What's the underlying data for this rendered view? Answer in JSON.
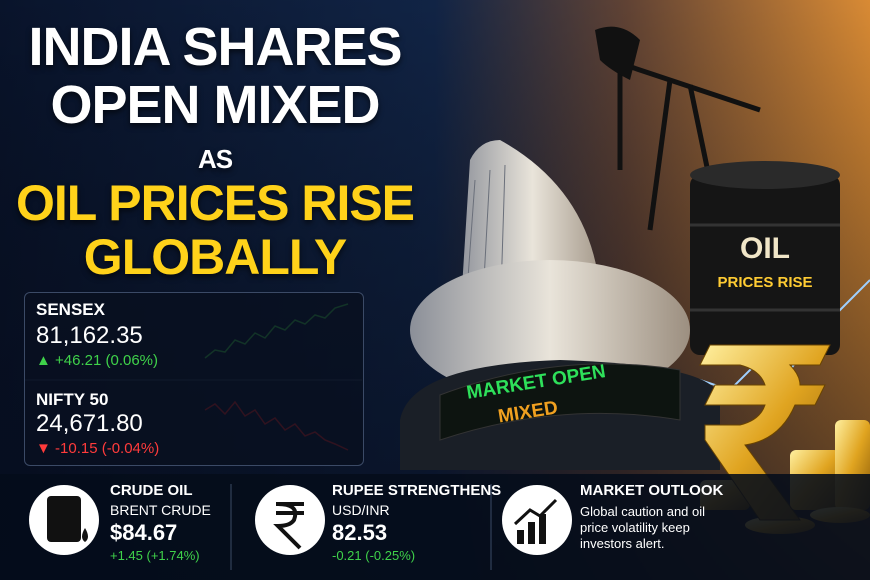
{
  "headline": {
    "line1": "INDIA SHARES",
    "line2": "OPEN MIXED",
    "connector": "AS",
    "line3": "OIL PRICES RISE",
    "line4": "GLOBALLY"
  },
  "indices": [
    {
      "name": "SENSEX",
      "value": "81,162.35",
      "change": "+46.21 (0.06%)"
    },
    {
      "name": "NIFTY 50",
      "value": "24,671.80",
      "change": "-10.15 (-0.04%)"
    }
  ],
  "building_sign": {
    "line1": "MARKET OPEN",
    "line2": "MIXED"
  },
  "barrel": {
    "line1": "OIL",
    "line2": "PRICES RISE"
  },
  "cards": [
    {
      "title": "CRUDE OIL",
      "subtitle": "BRENT CRUDE",
      "value": "$84.67",
      "change": "+1.45 (+1.74%)"
    },
    {
      "title": "RUPEE STRENGTHENS",
      "subtitle": "USD/INR",
      "value": "82.53",
      "change": "-0.21 (-0.25%)"
    },
    {
      "title": "MARKET OUTLOOK",
      "text": "Global caution and oil price volatility keep investors alert."
    }
  ]
}
